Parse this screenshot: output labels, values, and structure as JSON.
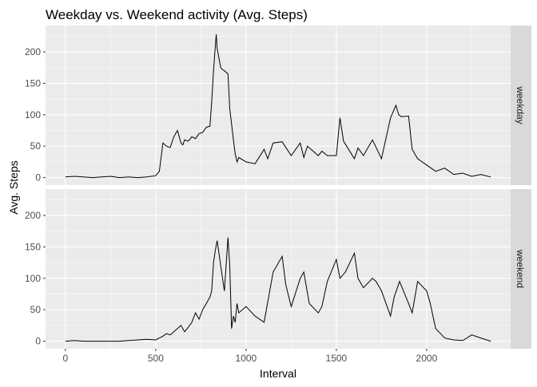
{
  "chart_data": {
    "type": "line",
    "title": "Weekday vs. Weekend activity (Avg. Steps)",
    "xlabel": "Interval",
    "ylabel": "Avg. Steps",
    "xlim": [
      -110,
      2465
    ],
    "ylim": [
      -12,
      242
    ],
    "xticks": [
      0,
      500,
      1000,
      1500,
      2000
    ],
    "yticks": [
      0,
      50,
      100,
      150,
      200
    ],
    "grid": true,
    "colors": {
      "panel": "#EBEBEB",
      "strip": "#D9D9D9",
      "grid": "#FFFFFF",
      "line": "#000000",
      "text": "#1A1A1A",
      "tick_text": "#4D4D4D"
    },
    "facets": [
      {
        "label": "weekday",
        "x": [
          0,
          50,
          100,
          150,
          200,
          250,
          300,
          350,
          400,
          450,
          500,
          520,
          540,
          560,
          580,
          600,
          620,
          640,
          650,
          660,
          680,
          700,
          720,
          740,
          760,
          780,
          800,
          810,
          820,
          830,
          835,
          840,
          850,
          860,
          870,
          880,
          900,
          910,
          920,
          930,
          940,
          950,
          960,
          1000,
          1050,
          1100,
          1120,
          1150,
          1200,
          1250,
          1300,
          1320,
          1340,
          1400,
          1420,
          1450,
          1500,
          1520,
          1540,
          1600,
          1620,
          1650,
          1700,
          1750,
          1800,
          1830,
          1845,
          1860,
          1900,
          1920,
          1950,
          2000,
          2050,
          2100,
          2150,
          2200,
          2250,
          2300,
          2355
        ],
        "y": [
          1,
          2,
          1,
          0,
          1,
          2,
          0,
          1,
          0,
          1,
          3,
          10,
          55,
          50,
          48,
          65,
          75,
          55,
          52,
          60,
          58,
          65,
          62,
          70,
          72,
          80,
          82,
          120,
          170,
          210,
          228,
          206,
          190,
          175,
          172,
          170,
          165,
          110,
          85,
          60,
          38,
          25,
          32,
          25,
          22,
          45,
          30,
          55,
          57,
          35,
          55,
          32,
          50,
          35,
          42,
          35,
          35,
          95,
          58,
          30,
          47,
          35,
          60,
          30,
          95,
          115,
          100,
          97,
          98,
          45,
          30,
          20,
          10,
          15,
          5,
          7,
          2,
          5,
          1
        ]
      },
      {
        "label": "weekend",
        "x": [
          0,
          50,
          100,
          150,
          200,
          250,
          300,
          350,
          400,
          450,
          500,
          520,
          540,
          560,
          580,
          600,
          620,
          640,
          660,
          680,
          700,
          720,
          740,
          760,
          780,
          800,
          810,
          820,
          830,
          840,
          850,
          860,
          870,
          880,
          900,
          910,
          920,
          930,
          940,
          950,
          960,
          1000,
          1050,
          1100,
          1150,
          1200,
          1220,
          1250,
          1300,
          1320,
          1350,
          1400,
          1420,
          1450,
          1500,
          1520,
          1550,
          1600,
          1620,
          1650,
          1700,
          1720,
          1750,
          1800,
          1820,
          1850,
          1900,
          1920,
          1950,
          2000,
          2020,
          2050,
          2100,
          2150,
          2200,
          2250,
          2300,
          2355
        ],
        "y": [
          0,
          1,
          0,
          0,
          0,
          0,
          0,
          1,
          2,
          3,
          2,
          5,
          8,
          12,
          10,
          15,
          20,
          25,
          15,
          22,
          30,
          45,
          35,
          50,
          60,
          70,
          80,
          125,
          145,
          160,
          140,
          120,
          100,
          80,
          165,
          120,
          20,
          40,
          30,
          60,
          45,
          55,
          40,
          30,
          110,
          135,
          90,
          55,
          100,
          110,
          60,
          45,
          55,
          95,
          130,
          100,
          110,
          140,
          100,
          85,
          100,
          95,
          80,
          40,
          70,
          95,
          60,
          45,
          95,
          80,
          60,
          20,
          5,
          2,
          1,
          10,
          5,
          0
        ]
      }
    ]
  }
}
